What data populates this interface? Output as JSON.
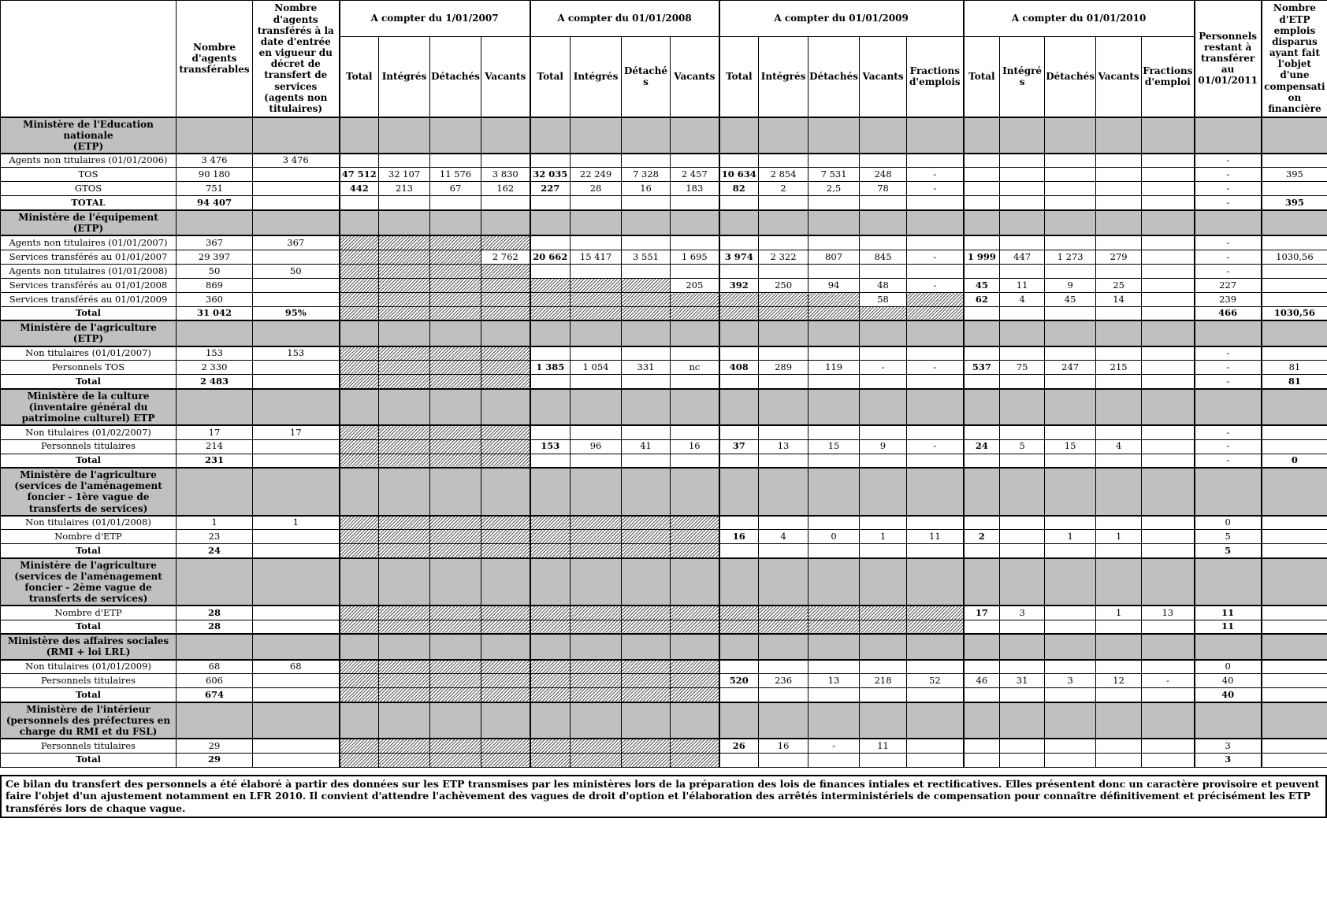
{
  "table": {
    "header": {
      "corner": "",
      "transferables": "Nombre d'agents transférables",
      "decret": "Nombre d'agents transférés à la date d'entrée en vigueur du décret de transfert de services (agents non titulaires)",
      "groups": [
        {
          "label": "A compter du 1/01/2007",
          "cols": [
            "Total",
            "Intégrés",
            "Détachés",
            "Vacants"
          ]
        },
        {
          "label": "A compter du 01/01/2008",
          "cols": [
            "Total",
            "Intégrés",
            "Détachés",
            "Vacants"
          ]
        },
        {
          "label": "A compter du 01/01/2009",
          "cols": [
            "Total",
            "Intégrés",
            "Détachés",
            "Vacants",
            "Fractions d'emplois"
          ]
        },
        {
          "label": "A compter du 01/01/2010",
          "cols": [
            "Total",
            "Intégrés",
            "Détachés",
            "Vacants",
            "Fractions d'emploi"
          ]
        }
      ],
      "restant": "Personnels restant à transférer au 01/01/2011",
      "compensation": "Nombre d'ETP emplois disparus ayant fait l'objet d'une compensation financière"
    },
    "sections": [
      {
        "title": "Ministère de l'Education nationale\n(ETP)",
        "rows": [
          {
            "label": "Agents non titulaires (01/01/2006)",
            "bold": false,
            "cells": [
              "3 476",
              "3 476",
              "",
              "",
              "",
              "",
              "",
              "",
              "",
              "",
              "",
              "",
              "",
              "",
              "",
              "",
              "",
              "",
              "",
              "",
              "-",
              ""
            ]
          },
          {
            "label": "TOS",
            "bold": false,
            "cells": [
              "90 180",
              "",
              "*47 512",
              "32 107",
              "11 576",
              "3 830",
              "*32 035",
              "22 249",
              "7 328",
              "2 457",
              "*10 634",
              "2 854",
              "7 531",
              "248",
              "-",
              "",
              "",
              "",
              "",
              "",
              "-",
              "395"
            ]
          },
          {
            "label": "GTOS",
            "bold": false,
            "cells": [
              "751",
              "",
              "*442",
              "213",
              "67",
              "162",
              "*227",
              "28",
              "16",
              "183",
              "*82",
              "2",
              "2,5",
              "78",
              "-",
              "",
              "",
              "",
              "",
              "",
              "-",
              ""
            ]
          },
          {
            "label": "TOTAL",
            "bold": true,
            "cells": [
              "*94 407",
              "",
              "",
              "",
              "",
              "",
              "",
              "",
              "",
              "",
              "",
              "",
              "",
              "",
              "",
              "",
              "",
              "",
              "",
              "",
              "-",
              "*395"
            ]
          }
        ]
      },
      {
        "title": "Ministère de l'équipement\n(ETP)",
        "rows": [
          {
            "label": "Agents non titulaires (01/01/2007)",
            "bold": false,
            "cells": [
              "367",
              "367",
              "#",
              "#",
              "#",
              "#",
              "",
              "",
              "",
              "",
              "",
              "",
              "",
              "",
              "",
              "",
              "",
              "",
              "",
              "",
              "-",
              ""
            ]
          },
          {
            "label": "Services transférés au 01/01/2007",
            "bold": false,
            "cells": [
              "29 397",
              "",
              "#",
              "#",
              "#",
              "2 762",
              "*20 662",
              "15 417",
              "3 551",
              "1 695",
              "*3 974",
              "2 322",
              "807",
              "845",
              "-",
              "*1 999",
              "447",
              "1 273",
              "279",
              "",
              "-",
              "1030,56"
            ]
          },
          {
            "label": "Agents non titulaires (01/01/2008)",
            "bold": false,
            "cells": [
              "50",
              "50",
              "#",
              "#",
              "#",
              "#",
              "",
              "",
              "",
              "",
              "",
              "",
              "",
              "",
              "",
              "",
              "",
              "",
              "",
              "",
              "-",
              ""
            ]
          },
          {
            "label": "Services transférés au 01/01/2008",
            "bold": false,
            "cells": [
              "869",
              "",
              "#",
              "#",
              "#",
              "#",
              "#",
              "#",
              "#",
              "205",
              "*392",
              "250",
              "94",
              "48",
              "-",
              "*45",
              "11",
              "9",
              "25",
              "",
              "227",
              ""
            ]
          },
          {
            "label": "Services transférés au 01/01/2009",
            "bold": false,
            "cells": [
              "360",
              "",
              "#",
              "#",
              "#",
              "#",
              "#",
              "#",
              "#",
              "#",
              "#",
              "#",
              "#",
              "58",
              "#",
              "*62",
              "4",
              "45",
              "14",
              "",
              "239",
              ""
            ]
          },
          {
            "label": "Total",
            "bold": true,
            "cells": [
              "*31 042",
              "*95%",
              "#",
              "#",
              "#",
              "#",
              "#",
              "#",
              "#",
              "#",
              "#",
              "#",
              "#",
              "#",
              "#",
              "",
              "",
              "",
              "",
              "",
              "*466",
              "*1030,56"
            ]
          }
        ]
      },
      {
        "title": "Ministère de l'agriculture\n(ETP)",
        "rows": [
          {
            "label": "Non titulaires (01/01/2007)",
            "bold": false,
            "cells": [
              "153",
              "153",
              "#",
              "#",
              "#",
              "#",
              "",
              "",
              "",
              "",
              "",
              "",
              "",
              "",
              "",
              "",
              "",
              "",
              "",
              "",
              "-",
              ""
            ]
          },
          {
            "label": "Personnels TOS",
            "bold": false,
            "cells": [
              "2 330",
              "",
              "#",
              "#",
              "#",
              "#",
              "*1 385",
              "1 054",
              "331",
              "nc",
              "*408",
              "289",
              "119",
              "-",
              "-",
              "*537",
              "75",
              "247",
              "215",
              "",
              "-",
              "81"
            ]
          },
          {
            "label": "Total",
            "bold": true,
            "cells": [
              "*2 483",
              "",
              "#",
              "#",
              "#",
              "#",
              "",
              "",
              "",
              "",
              "",
              "",
              "",
              "",
              "",
              "",
              "",
              "",
              "",
              "",
              "-",
              "*81"
            ]
          }
        ]
      },
      {
        "title": "Ministère de la culture (inventaire général du patrimoine culturel) ETP",
        "rows": [
          {
            "label": "Non titulaires (01/02/2007)",
            "bold": false,
            "cells": [
              "17",
              "17",
              "#",
              "#",
              "#",
              "#",
              "",
              "",
              "",
              "",
              "",
              "",
              "",
              "",
              "",
              "",
              "",
              "",
              "",
              "",
              "-",
              ""
            ]
          },
          {
            "label": "Personnels titulaires",
            "bold": false,
            "cells": [
              "214",
              "",
              "#",
              "#",
              "#",
              "#",
              "*153",
              "96",
              "41",
              "16",
              "*37",
              "13",
              "15",
              "9",
              "-",
              "*24",
              "5",
              "15",
              "4",
              "",
              "-",
              ""
            ]
          },
          {
            "label": "Total",
            "bold": true,
            "cells": [
              "*231",
              "",
              "#",
              "#",
              "#",
              "#",
              "",
              "",
              "",
              "",
              "",
              "",
              "",
              "",
              "",
              "",
              "",
              "",
              "",
              "",
              "-",
              "*0"
            ]
          }
        ]
      },
      {
        "title": "Ministère de l'agriculture (services de l'aménagement foncier - 1ère vague de transferts de services)",
        "rows": [
          {
            "label": "Non titulaires (01/01/2008)",
            "bold": false,
            "cells": [
              "1",
              "1",
              "#",
              "#",
              "#",
              "#",
              "#",
              "#",
              "#",
              "#",
              "",
              "",
              "",
              "",
              "",
              "",
              "",
              "",
              "",
              "",
              "0",
              ""
            ]
          },
          {
            "label": "Nombre d'ETP",
            "bold": false,
            "cells": [
              "23",
              "",
              "#",
              "#",
              "#",
              "#",
              "#",
              "#",
              "#",
              "#",
              "*16",
              "4",
              "0",
              "1",
              "11",
              "*2",
              "",
              "1",
              "1",
              "",
              "5",
              ""
            ]
          },
          {
            "label": "Total",
            "bold": true,
            "cells": [
              "*24",
              "",
              "#",
              "#",
              "#",
              "#",
              "#",
              "#",
              "#",
              "#",
              "",
              "",
              "",
              "",
              "",
              "",
              "",
              "",
              "",
              "",
              "*5",
              ""
            ]
          }
        ]
      },
      {
        "title": "Ministère de l'agriculture (services de l'aménagement foncier - 2ème vague de transferts de services)",
        "rows": [
          {
            "label": "Nombre d'ETP",
            "bold": false,
            "cells": [
              "*28",
              "",
              "#",
              "#",
              "#",
              "#",
              "#",
              "#",
              "#",
              "#",
              "#",
              "#",
              "#",
              "#",
              "#",
              "*17",
              "3",
              "",
              "1",
              "13",
              "*11",
              ""
            ]
          },
          {
            "label": "Total",
            "bold": true,
            "cells": [
              "*28",
              "",
              "#",
              "#",
              "#",
              "#",
              "#",
              "#",
              "#",
              "#",
              "#",
              "#",
              "#",
              "#",
              "#",
              "",
              "",
              "",
              "",
              "",
              "*11",
              ""
            ]
          }
        ]
      },
      {
        "title": "Ministère des affaires sociales\n(RMI + loi LRL)",
        "rows": [
          {
            "label": "Non titulaires (01/01/2009)",
            "bold": false,
            "cells": [
              "68",
              "68",
              "#",
              "#",
              "#",
              "#",
              "#",
              "#",
              "#",
              "#",
              "",
              "",
              "",
              "",
              "",
              "",
              "",
              "",
              "",
              "",
              "0",
              ""
            ]
          },
          {
            "label": "Personnels titulaires",
            "bold": false,
            "cells": [
              "606",
              "",
              "#",
              "#",
              "#",
              "#",
              "#",
              "#",
              "#",
              "#",
              "*520",
              "236",
              "13",
              "218",
              "52",
              "46",
              "31",
              "3",
              "12",
              "-",
              "40",
              ""
            ]
          },
          {
            "label": "Total",
            "bold": true,
            "cells": [
              "*674",
              "",
              "#",
              "#",
              "#",
              "#",
              "#",
              "#",
              "#",
              "#",
              "",
              "",
              "",
              "",
              "",
              "",
              "",
              "",
              "",
              "",
              "*40",
              ""
            ]
          }
        ]
      },
      {
        "title": "Ministère de l'intérieur (personnels des préfectures en charge du RMI et du FSL)",
        "rows": [
          {
            "label": "Personnels titulaires",
            "bold": false,
            "cells": [
              "29",
              "",
              "#",
              "#",
              "#",
              "#",
              "#",
              "#",
              "#",
              "#",
              "*26",
              "16",
              "-",
              "11",
              "",
              "",
              "",
              "",
              "",
              "",
              "3",
              ""
            ]
          },
          {
            "label": "Total",
            "bold": true,
            "cells": [
              "*29",
              "",
              "#",
              "#",
              "#",
              "#",
              "#",
              "#",
              "#",
              "#",
              "",
              "",
              "",
              "",
              "",
              "",
              "",
              "",
              "",
              "",
              "*3",
              ""
            ]
          }
        ]
      }
    ]
  },
  "footer": "Ce bilan du transfert des personnels a été élaboré à partir des données sur les ETP transmises par les ministères lors de la préparation des lois de finances intiales et rectificatives. Elles présentent donc un caractère provisoire et peuvent faire l'objet d'un ajustement notamment en LFR 2010. Il convient d'attendre l'achèvement des vagues de droit d'option et l'élaboration des arrêtés interministériels de compensation pour connaître définitivement et précisément les ETP transférés lors de chaque vague.",
  "colors": {
    "section_bg": "#c0c0c0",
    "border": "#000000",
    "text": "#000000"
  }
}
